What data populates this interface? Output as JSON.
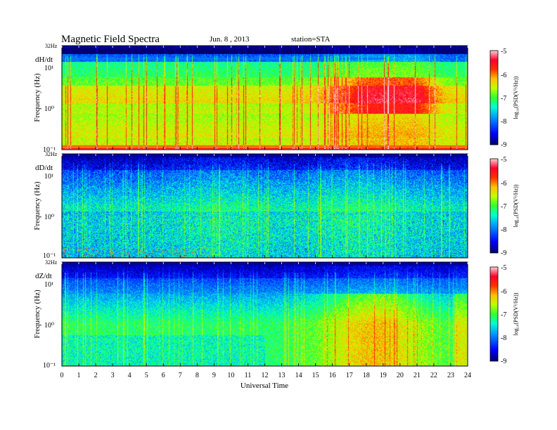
{
  "header": {
    "title": "Magnetic  Field  Spectra",
    "date": "Jun.  8  , 2013",
    "station": "station=STA"
  },
  "chart_data": [
    {
      "type": "heatmap",
      "panel_label": "dH/dt",
      "ylabel": "Frequency  (Hz)",
      "top_label": "32Hz",
      "y_ticks": [
        "10¹",
        "10⁰",
        "10⁻¹"
      ],
      "xlim": [
        0,
        24
      ],
      "ylim_hz": [
        0.1,
        32
      ],
      "colorbar_label": "log₁₀(PSD(V²/Hz))",
      "colorbar_ticks": [
        "-5",
        "-6",
        "-7",
        "-8",
        "-9"
      ],
      "colorbar_range": [
        -9,
        -5
      ]
    },
    {
      "type": "heatmap",
      "panel_label": "dD/dt",
      "ylabel": "Frequency  (Hz)",
      "top_label": "32Hz",
      "y_ticks": [
        "10¹",
        "10⁰",
        "10⁻¹"
      ],
      "xlim": [
        0,
        24
      ],
      "ylim_hz": [
        0.1,
        32
      ],
      "colorbar_label": "log₁₀(PSD(V²/Hz))",
      "colorbar_ticks": [
        "-5",
        "-6",
        "-7",
        "-8",
        "-9"
      ],
      "colorbar_range": [
        -9,
        -5
      ]
    },
    {
      "type": "heatmap",
      "panel_label": "dZ/dt",
      "ylabel": "Frequency  (Hz)",
      "top_label": "32Hz",
      "y_ticks": [
        "10¹",
        "10⁰",
        "10⁻¹"
      ],
      "xlim": [
        0,
        24
      ],
      "ylim_hz": [
        0.1,
        32
      ],
      "colorbar_label": "log₁₀(PSD(V²/Hz))",
      "colorbar_ticks": [
        "-5",
        "-6",
        "-7",
        "-8",
        "-9"
      ],
      "colorbar_range": [
        -9,
        -5
      ]
    }
  ],
  "x_axis": {
    "label": "Universal Time",
    "ticks": [
      "0",
      "1",
      "2",
      "3",
      "4",
      "5",
      "6",
      "7",
      "8",
      "9",
      "10",
      "11",
      "12",
      "13",
      "14",
      "15",
      "16",
      "17",
      "18",
      "19",
      "20",
      "21",
      "22",
      "23",
      "24"
    ]
  },
  "colors": {
    "colormap": [
      "#000088",
      "#0000ff",
      "#0070ff",
      "#00d0ff",
      "#00ffb0",
      "#30ff30",
      "#c0ff00",
      "#ffd000",
      "#ff5000",
      "#ff0000",
      "#ffc0c0"
    ]
  }
}
